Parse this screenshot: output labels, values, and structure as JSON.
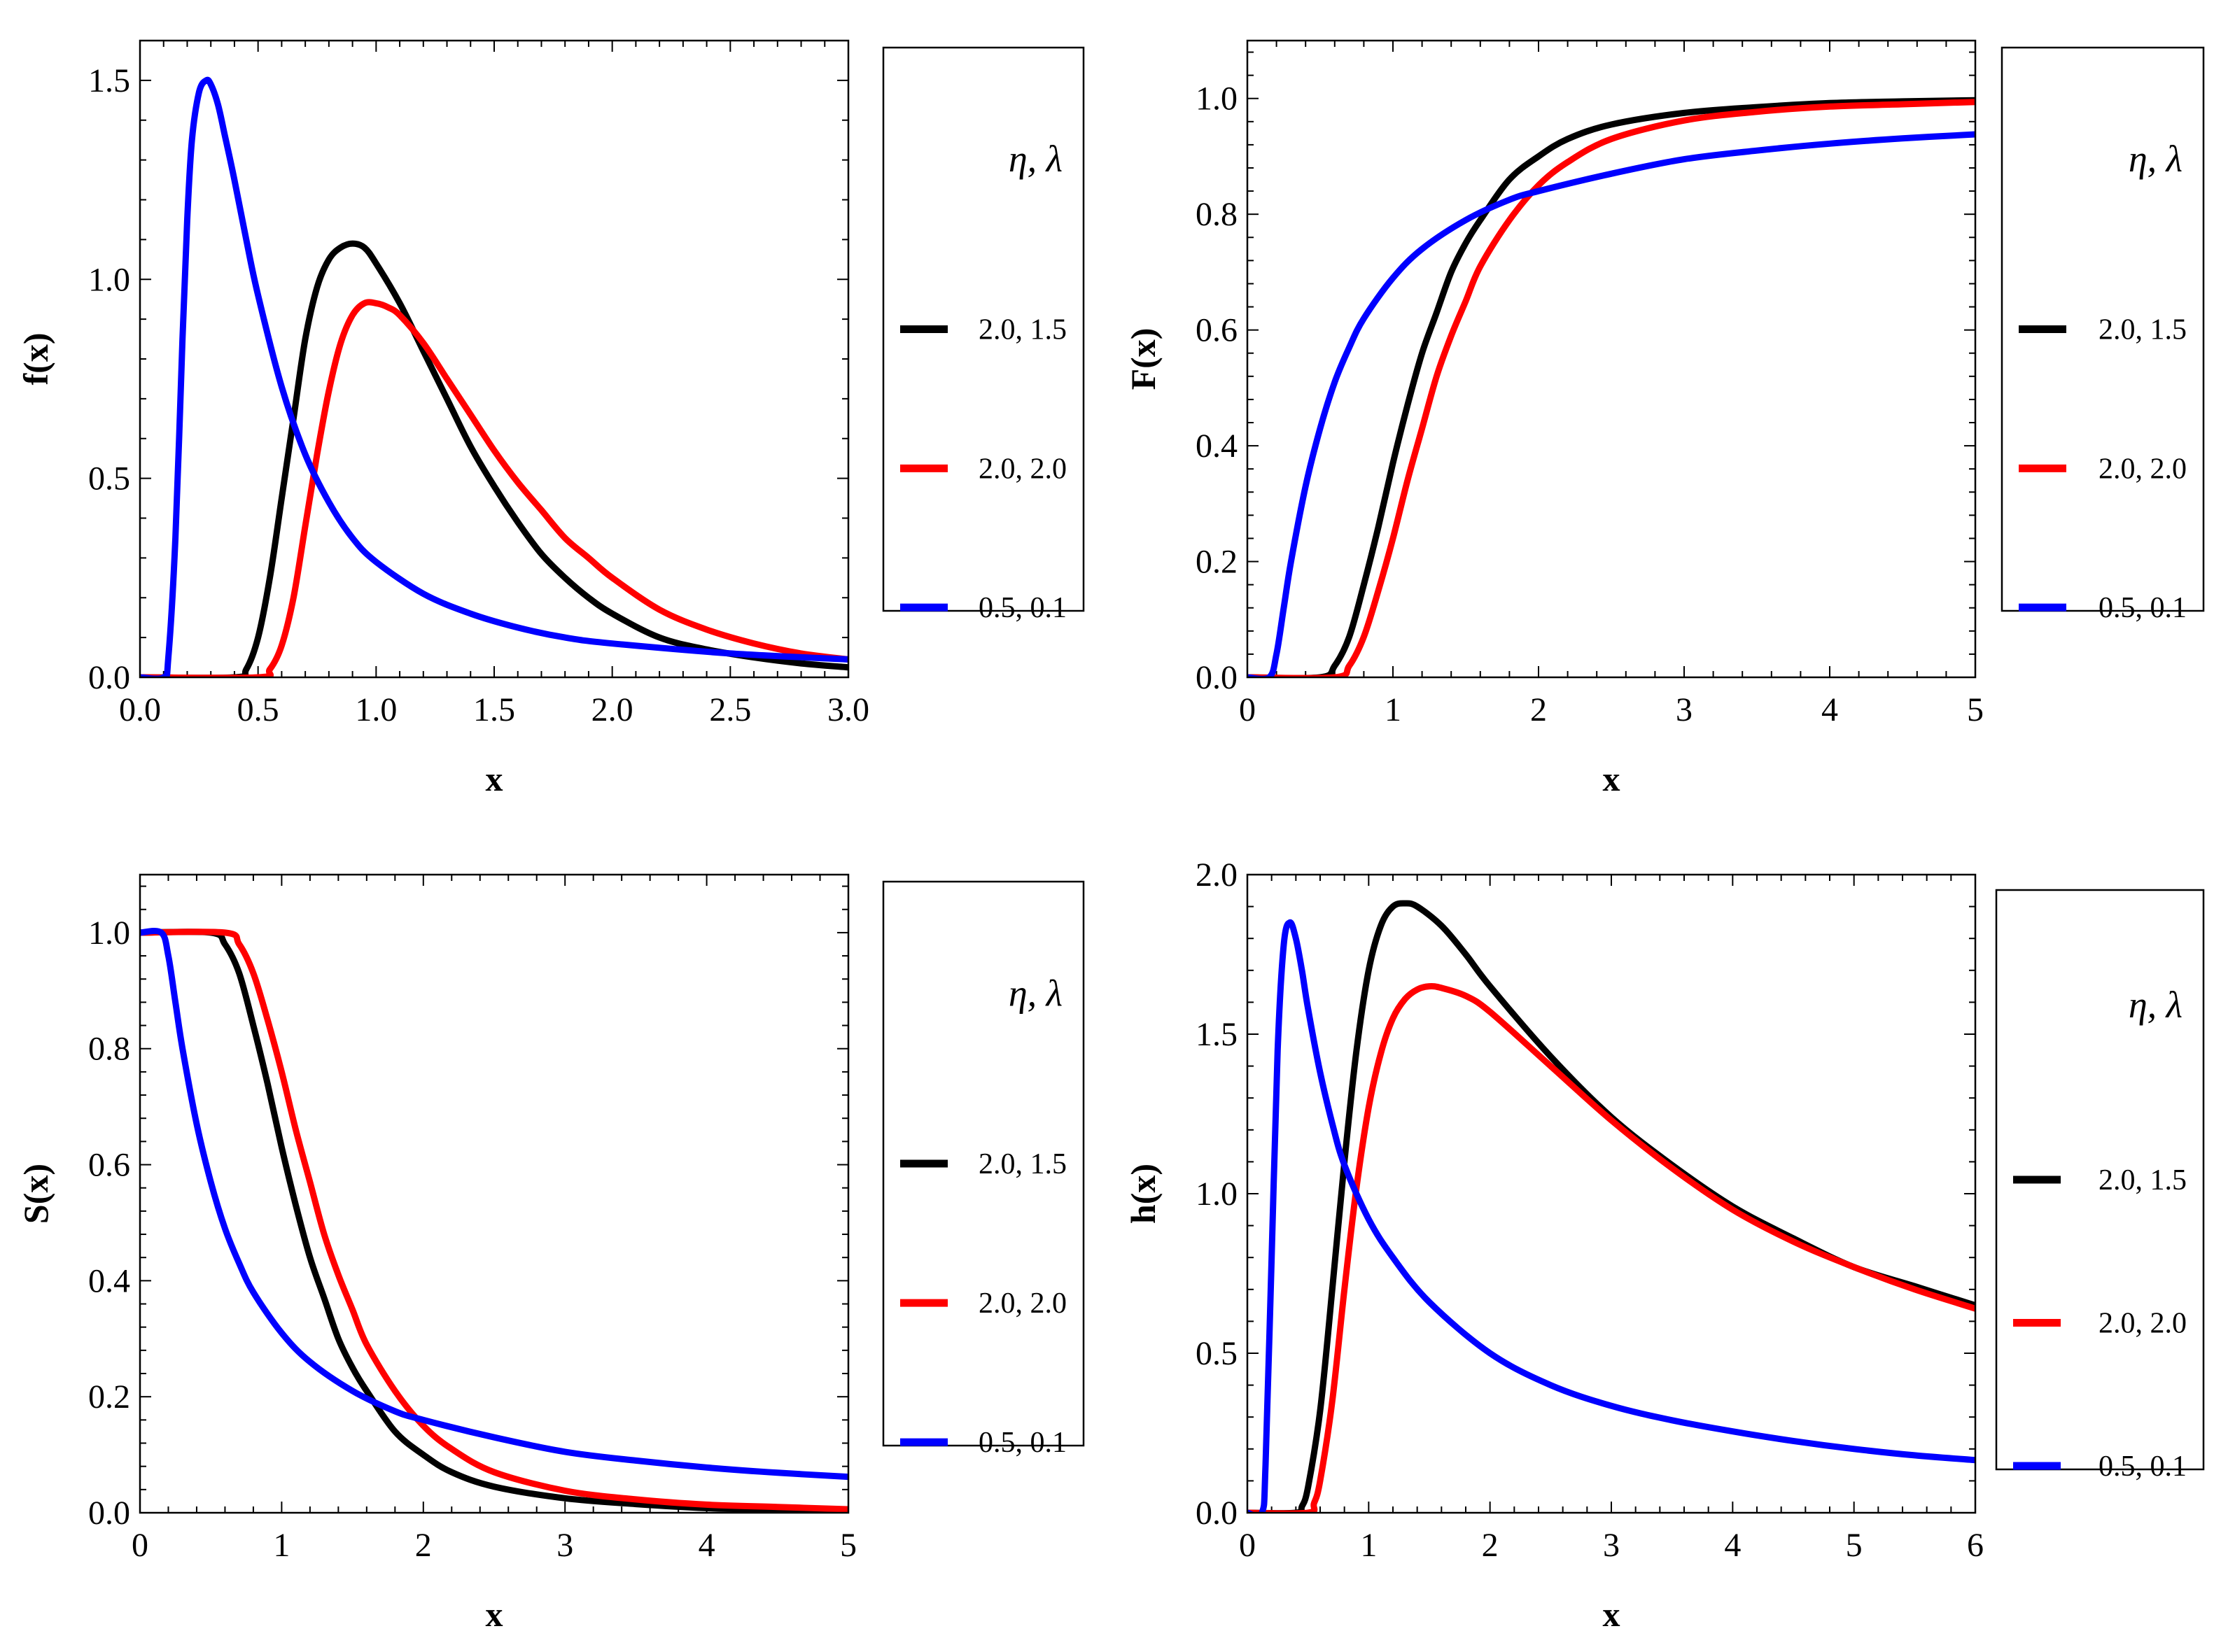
{
  "chart_data": [
    {
      "type": "line",
      "xlabel": "x",
      "ylabel": "f(x)",
      "xlim": [
        0,
        3
      ],
      "ylim": [
        0,
        1.6
      ],
      "xticks": [
        "0.0",
        "0.5",
        "1.0",
        "1.5",
        "2.0",
        "2.5",
        "3.0"
      ],
      "yticks": [
        "0.0",
        "0.5",
        "1.0",
        "1.5"
      ],
      "grid": false,
      "legend_position": "right",
      "legend_title": "η, λ",
      "series": [
        {
          "name": "2.0, 1.5",
          "color": "#000000",
          "x": [
            0,
            0.4,
            0.45,
            0.5,
            0.55,
            0.6,
            0.65,
            0.7,
            0.75,
            0.8,
            0.85,
            0.9,
            0.95,
            1.0,
            1.1,
            1.2,
            1.3,
            1.4,
            1.5,
            1.6,
            1.7,
            1.8,
            1.9,
            2.0,
            2.2,
            2.4,
            2.6,
            2.8,
            3.0
          ],
          "y": [
            0,
            0,
            0.02,
            0.1,
            0.25,
            0.45,
            0.65,
            0.85,
            0.98,
            1.05,
            1.08,
            1.09,
            1.08,
            1.04,
            0.94,
            0.82,
            0.7,
            0.58,
            0.48,
            0.39,
            0.31,
            0.25,
            0.2,
            0.16,
            0.1,
            0.07,
            0.05,
            0.035,
            0.025
          ]
        },
        {
          "name": "2.0, 2.0",
          "color": "#ff0000",
          "x": [
            0,
            0.5,
            0.55,
            0.6,
            0.65,
            0.7,
            0.75,
            0.8,
            0.85,
            0.9,
            0.95,
            1.0,
            1.05,
            1.1,
            1.2,
            1.3,
            1.4,
            1.5,
            1.6,
            1.7,
            1.8,
            1.9,
            2.0,
            2.2,
            2.4,
            2.6,
            2.8,
            3.0
          ],
          "y": [
            0,
            0,
            0.02,
            0.08,
            0.2,
            0.38,
            0.56,
            0.72,
            0.84,
            0.91,
            0.94,
            0.94,
            0.93,
            0.91,
            0.84,
            0.75,
            0.66,
            0.57,
            0.49,
            0.42,
            0.35,
            0.3,
            0.25,
            0.17,
            0.12,
            0.085,
            0.06,
            0.045
          ]
        },
        {
          "name": "0.5, 0.1",
          "color": "#0000ff",
          "x": [
            0,
            0.1,
            0.12,
            0.15,
            0.18,
            0.2,
            0.22,
            0.25,
            0.28,
            0.3,
            0.33,
            0.36,
            0.4,
            0.45,
            0.5,
            0.6,
            0.7,
            0.8,
            0.9,
            1.0,
            1.2,
            1.4,
            1.6,
            1.8,
            2.0,
            2.5,
            3.0
          ],
          "y": [
            0,
            0,
            0.05,
            0.35,
            0.85,
            1.15,
            1.35,
            1.47,
            1.5,
            1.49,
            1.44,
            1.36,
            1.25,
            1.1,
            0.96,
            0.73,
            0.56,
            0.44,
            0.35,
            0.29,
            0.21,
            0.16,
            0.125,
            0.1,
            0.085,
            0.06,
            0.045
          ]
        }
      ]
    },
    {
      "type": "line",
      "xlabel": "x",
      "ylabel": "F(x)",
      "xlim": [
        0,
        5
      ],
      "ylim": [
        0,
        1.1
      ],
      "xticks": [
        "0",
        "1",
        "2",
        "3",
        "4",
        "5"
      ],
      "yticks": [
        "0.0",
        "0.2",
        "0.4",
        "0.6",
        "0.8",
        "1.0"
      ],
      "grid": false,
      "legend_position": "right",
      "legend_title": "η, λ",
      "series": [
        {
          "name": "2.0, 1.5",
          "color": "#000000",
          "x": [
            0,
            0.5,
            0.6,
            0.7,
            0.8,
            0.9,
            1.0,
            1.1,
            1.2,
            1.3,
            1.4,
            1.5,
            1.6,
            1.8,
            2.0,
            2.2,
            2.5,
            3.0,
            3.5,
            4.0,
            4.5,
            5.0
          ],
          "y": [
            0,
            0,
            0.02,
            0.07,
            0.16,
            0.26,
            0.37,
            0.47,
            0.56,
            0.63,
            0.7,
            0.75,
            0.79,
            0.86,
            0.9,
            0.93,
            0.955,
            0.975,
            0.985,
            0.992,
            0.995,
            0.997
          ]
        },
        {
          "name": "2.0, 2.0",
          "color": "#ff0000",
          "x": [
            0,
            0.6,
            0.7,
            0.8,
            0.9,
            1.0,
            1.1,
            1.2,
            1.3,
            1.4,
            1.5,
            1.6,
            1.8,
            2.0,
            2.2,
            2.5,
            3.0,
            3.5,
            4.0,
            4.5,
            5.0
          ],
          "y": [
            0,
            0,
            0.02,
            0.07,
            0.15,
            0.24,
            0.34,
            0.43,
            0.52,
            0.59,
            0.65,
            0.71,
            0.79,
            0.85,
            0.89,
            0.93,
            0.962,
            0.977,
            0.986,
            0.99,
            0.994
          ]
        },
        {
          "name": "0.5, 0.1",
          "color": "#0000ff",
          "x": [
            0,
            0.15,
            0.2,
            0.25,
            0.3,
            0.4,
            0.5,
            0.6,
            0.7,
            0.8,
            1.0,
            1.2,
            1.5,
            1.8,
            2.0,
            2.5,
            3.0,
            3.5,
            4.0,
            4.5,
            5.0
          ],
          "y": [
            0,
            0,
            0.04,
            0.12,
            0.2,
            0.33,
            0.43,
            0.51,
            0.57,
            0.62,
            0.69,
            0.74,
            0.79,
            0.825,
            0.84,
            0.87,
            0.895,
            0.91,
            0.922,
            0.931,
            0.938
          ]
        }
      ]
    },
    {
      "type": "line",
      "xlabel": "x",
      "ylabel": "S(x)",
      "xlim": [
        0,
        5
      ],
      "ylim": [
        0,
        1.1
      ],
      "xticks": [
        "0",
        "1",
        "2",
        "3",
        "4",
        "5"
      ],
      "yticks": [
        "0.0",
        "0.2",
        "0.4",
        "0.6",
        "0.8",
        "1.0"
      ],
      "grid": false,
      "legend_position": "right",
      "legend_title": "η, λ",
      "series": [
        {
          "name": "2.0, 1.5",
          "color": "#000000",
          "x": [
            0,
            0.5,
            0.6,
            0.7,
            0.8,
            0.9,
            1.0,
            1.1,
            1.2,
            1.3,
            1.4,
            1.5,
            1.6,
            1.8,
            2.0,
            2.2,
            2.5,
            3.0,
            3.5,
            4.0,
            4.5,
            5.0
          ],
          "y": [
            1,
            1,
            0.98,
            0.93,
            0.84,
            0.74,
            0.63,
            0.53,
            0.44,
            0.37,
            0.3,
            0.25,
            0.21,
            0.14,
            0.1,
            0.07,
            0.045,
            0.025,
            0.015,
            0.008,
            0.005,
            0.003
          ]
        },
        {
          "name": "2.0, 2.0",
          "color": "#ff0000",
          "x": [
            0,
            0.6,
            0.7,
            0.8,
            0.9,
            1.0,
            1.1,
            1.2,
            1.3,
            1.4,
            1.5,
            1.6,
            1.8,
            2.0,
            2.2,
            2.5,
            3.0,
            3.5,
            4.0,
            4.5,
            5.0
          ],
          "y": [
            1,
            1,
            0.98,
            0.93,
            0.85,
            0.76,
            0.66,
            0.57,
            0.48,
            0.41,
            0.35,
            0.29,
            0.21,
            0.15,
            0.11,
            0.07,
            0.038,
            0.023,
            0.014,
            0.01,
            0.006
          ]
        },
        {
          "name": "0.5, 0.1",
          "color": "#0000ff",
          "x": [
            0,
            0.15,
            0.2,
            0.25,
            0.3,
            0.4,
            0.5,
            0.6,
            0.7,
            0.8,
            1.0,
            1.2,
            1.5,
            1.8,
            2.0,
            2.5,
            3.0,
            3.5,
            4.0,
            4.5,
            5.0
          ],
          "y": [
            1,
            1,
            0.96,
            0.88,
            0.8,
            0.67,
            0.57,
            0.49,
            0.43,
            0.38,
            0.31,
            0.26,
            0.21,
            0.175,
            0.16,
            0.13,
            0.105,
            0.09,
            0.078,
            0.069,
            0.062
          ]
        }
      ]
    },
    {
      "type": "line",
      "xlabel": "x",
      "ylabel": "h(x)",
      "xlim": [
        0,
        6
      ],
      "ylim": [
        0,
        2
      ],
      "xticks": [
        "0",
        "1",
        "2",
        "3",
        "4",
        "5",
        "6"
      ],
      "yticks": [
        "0.0",
        "0.5",
        "1.0",
        "1.5",
        "2.0"
      ],
      "grid": false,
      "legend_position": "right",
      "legend_title": "η, λ",
      "series": [
        {
          "name": "2.0, 1.5",
          "color": "#000000",
          "x": [
            0,
            0.4,
            0.45,
            0.5,
            0.6,
            0.7,
            0.8,
            0.9,
            1.0,
            1.1,
            1.2,
            1.3,
            1.4,
            1.6,
            1.8,
            2.0,
            2.5,
            3.0,
            3.5,
            4.0,
            4.5,
            5.0,
            5.5,
            6.0
          ],
          "y": [
            0,
            0,
            0.02,
            0.08,
            0.32,
            0.7,
            1.1,
            1.45,
            1.7,
            1.84,
            1.9,
            1.91,
            1.9,
            1.84,
            1.75,
            1.65,
            1.43,
            1.24,
            1.09,
            0.96,
            0.86,
            0.77,
            0.71,
            0.65
          ]
        },
        {
          "name": "2.0, 2.0",
          "color": "#ff0000",
          "x": [
            0,
            0.5,
            0.55,
            0.6,
            0.7,
            0.8,
            0.9,
            1.0,
            1.1,
            1.2,
            1.3,
            1.4,
            1.5,
            1.6,
            1.8,
            2.0,
            2.5,
            3.0,
            3.5,
            4.0,
            4.5,
            5.0,
            5.5,
            6.0
          ],
          "y": [
            0,
            0,
            0.03,
            0.1,
            0.35,
            0.7,
            1.02,
            1.27,
            1.44,
            1.55,
            1.61,
            1.64,
            1.65,
            1.645,
            1.62,
            1.57,
            1.4,
            1.23,
            1.08,
            0.95,
            0.85,
            0.77,
            0.7,
            0.64
          ]
        },
        {
          "name": "0.5, 0.1",
          "color": "#0000ff",
          "x": [
            0,
            0.12,
            0.15,
            0.2,
            0.25,
            0.3,
            0.35,
            0.4,
            0.45,
            0.5,
            0.6,
            0.7,
            0.8,
            1.0,
            1.2,
            1.5,
            2.0,
            2.5,
            3.0,
            3.5,
            4.0,
            4.5,
            5.0,
            5.5,
            6.0
          ],
          "y": [
            0,
            0,
            0.15,
            0.8,
            1.45,
            1.78,
            1.85,
            1.8,
            1.7,
            1.58,
            1.38,
            1.22,
            1.09,
            0.92,
            0.8,
            0.66,
            0.5,
            0.4,
            0.335,
            0.29,
            0.255,
            0.225,
            0.2,
            0.18,
            0.165
          ]
        }
      ]
    }
  ]
}
